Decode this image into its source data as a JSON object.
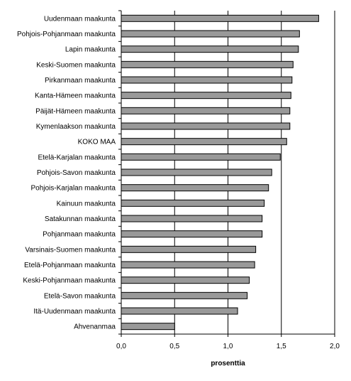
{
  "chart_data": {
    "type": "bar",
    "orientation": "horizontal",
    "categories": [
      "Uudenmaan maakunta",
      "Pohjois-Pohjanmaan maakunta",
      "Lapin maakunta",
      "Keski-Suomen maakunta",
      "Pirkanmaan maakunta",
      "Kanta-Hämeen maakunta",
      "Päijät-Hämeen maakunta",
      "Kymenlaakson maakunta",
      "KOKO MAA",
      "Etelä-Karjalan maakunta",
      "Pohjois-Savon maakunta",
      "Pohjois-Karjalan maakunta",
      "Kainuun maakunta",
      "Satakunnan maakunta",
      "Pohjanmaan maakunta",
      "Varsinais-Suomen maakunta",
      "Etelä-Pohjanmaan maakunta",
      "Keski-Pohjanmaan maakunta",
      "Etelä-Savon maakunta",
      "Itä-Uudenmaan maakunta",
      "Ahvenanmaa"
    ],
    "values": [
      1.85,
      1.67,
      1.66,
      1.61,
      1.6,
      1.59,
      1.58,
      1.58,
      1.55,
      1.49,
      1.41,
      1.38,
      1.34,
      1.32,
      1.32,
      1.26,
      1.25,
      1.2,
      1.18,
      1.09,
      0.5
    ],
    "xlabel": "prosenttia",
    "ylabel": "",
    "xlim": [
      0,
      2
    ],
    "xticks": [
      0,
      0.5,
      1,
      1.5,
      2
    ],
    "xtick_labels": [
      "0,0",
      "0,5",
      "1,0",
      "1,5",
      "2,0"
    ],
    "grid": "vertical",
    "bar_color": "#999999",
    "bar_edge_color": "#000000"
  }
}
